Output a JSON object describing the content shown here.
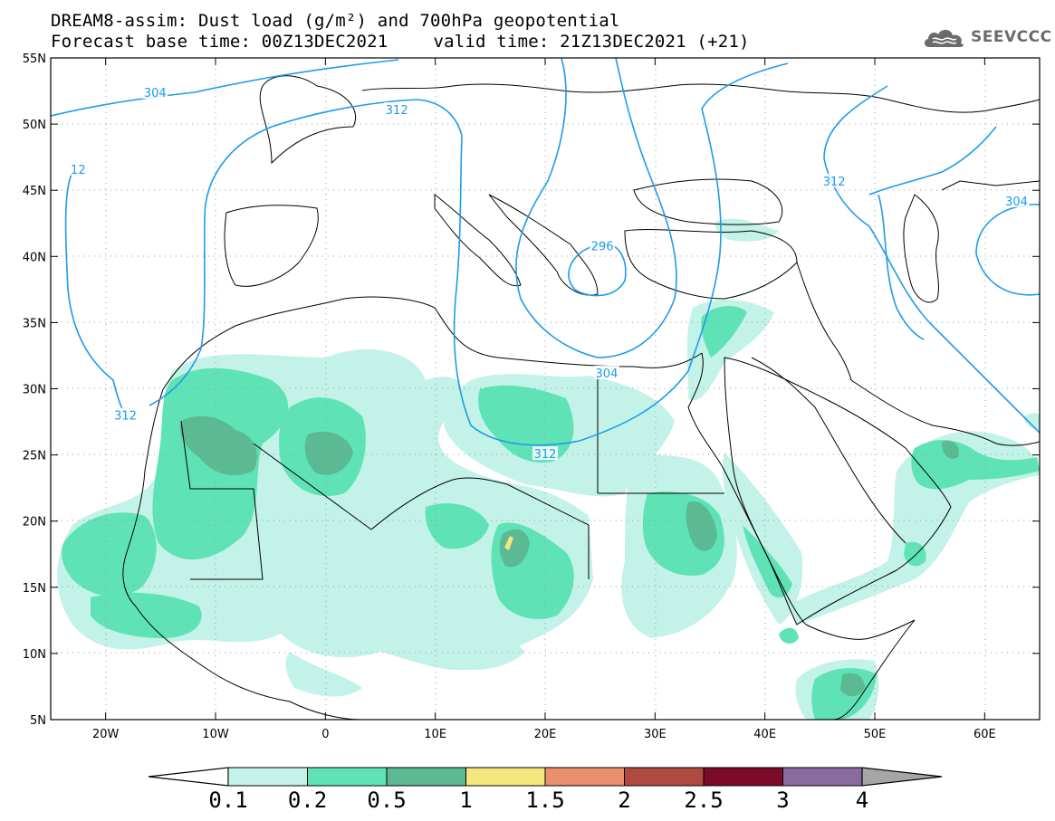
{
  "title": {
    "line1": "DREAM8-assim: Dust load (g/m²) and 700hPa geopotential",
    "line2_left": "Forecast base time: 00Z13DEC2021",
    "line2_right": "valid time: 21Z13DEC2021 (+21)"
  },
  "logo": {
    "text": "SEEVCCC",
    "icon": "cloud-logo-icon"
  },
  "axes": {
    "lat_labels": [
      "55N",
      "50N",
      "45N",
      "40N",
      "35N",
      "30N",
      "25N",
      "20N",
      "15N",
      "10N",
      "5N"
    ],
    "lat_values": [
      55,
      50,
      45,
      40,
      35,
      30,
      25,
      20,
      15,
      10,
      5
    ],
    "lon_labels": [
      "20W",
      "10W",
      "0",
      "10E",
      "20E",
      "30E",
      "40E",
      "50E",
      "60E"
    ],
    "lon_values": [
      -20,
      -10,
      0,
      10,
      20,
      30,
      40,
      50,
      60
    ],
    "lon_range": [
      -25,
      65
    ],
    "lat_range": [
      5,
      55
    ],
    "grid": "dotted"
  },
  "contour_labels": [
    {
      "text": "304",
      "lon": -15.5,
      "lat": 52.4
    },
    {
      "text": "312",
      "lon": 6.5,
      "lat": 51.1
    },
    {
      "text": "12",
      "lon": -22.5,
      "lat": 46.6
    },
    {
      "text": "312",
      "lon": -18.2,
      "lat": 28.0
    },
    {
      "text": "296",
      "lon": 25.2,
      "lat": 40.8
    },
    {
      "text": "304",
      "lon": 25.6,
      "lat": 31.2
    },
    {
      "text": "312",
      "lon": 20.0,
      "lat": 25.1
    },
    {
      "text": "312",
      "lon": 46.3,
      "lat": 45.7
    },
    {
      "text": "304",
      "lon": 62.9,
      "lat": 44.2
    }
  ],
  "colorbar": {
    "labels": [
      "0.1",
      "0.2",
      "0.5",
      "1",
      "1.5",
      "2",
      "2.5",
      "3",
      "4"
    ],
    "colors": [
      "#c3f2e8",
      "#5fe3b6",
      "#5bb994",
      "#f5e77e",
      "#e9916c",
      "#b04a40",
      "#7d0a2a",
      "#8b6aa0",
      "#a6a6a6"
    ],
    "under_color": "#ffffff"
  },
  "colors": {
    "contour": "#1e9bea",
    "coast": "#000000",
    "dust_light": "#c3f2e8",
    "dust_mid": "#5fe3b6",
    "dust_dark": "#5bb994",
    "dust_yellow": "#f5e77e"
  }
}
